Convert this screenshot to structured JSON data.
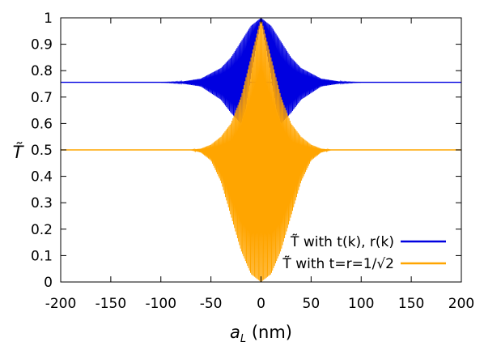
{
  "chart_data": {
    "type": "line",
    "ylabel": "T̃",
    "xlabel_symbol": "a",
    "xlabel_subscript": "L",
    "xlabel_unit": "(nm)",
    "xlim": [
      -200,
      200
    ],
    "ylim": [
      0,
      1
    ],
    "xticks": [
      -200,
      -150,
      -100,
      -50,
      0,
      50,
      100,
      150,
      200
    ],
    "xtick_labels": [
      "-200",
      "-150",
      "-100",
      "-50",
      "0",
      "50",
      "100",
      "150",
      "200"
    ],
    "yticks": [
      0,
      0.1,
      0.2,
      0.3,
      0.4,
      0.5,
      0.6,
      0.7,
      0.8,
      0.9,
      1
    ],
    "ytick_labels": [
      "0",
      "0.1",
      "0.2",
      "0.3",
      "0.4",
      "0.5",
      "0.6",
      "0.7",
      "0.8",
      "0.9",
      "1"
    ],
    "grid": false,
    "legend_position": "bottom-right",
    "series": [
      {
        "name": "T̃ with t(k), r(k)",
        "color": "#0000e0",
        "baseline": 0.756,
        "upper": [
          [
            -200,
            0.756
          ],
          [
            -100,
            0.756
          ],
          [
            -80,
            0.758
          ],
          [
            -60,
            0.77
          ],
          [
            -40,
            0.81
          ],
          [
            -30,
            0.85
          ],
          [
            -20,
            0.91
          ],
          [
            -10,
            0.97
          ],
          [
            0,
            1.0
          ],
          [
            10,
            0.97
          ],
          [
            20,
            0.91
          ],
          [
            30,
            0.85
          ],
          [
            40,
            0.81
          ],
          [
            60,
            0.77
          ],
          [
            80,
            0.758
          ],
          [
            100,
            0.756
          ],
          [
            200,
            0.756
          ]
        ],
        "lower": [
          [
            -200,
            0.756
          ],
          [
            -100,
            0.756
          ],
          [
            -80,
            0.752
          ],
          [
            -60,
            0.74
          ],
          [
            -40,
            0.69
          ],
          [
            -30,
            0.64
          ],
          [
            -20,
            0.6
          ],
          [
            -15,
            0.66
          ],
          [
            -10,
            0.78
          ],
          [
            0,
            0.99
          ],
          [
            10,
            0.78
          ],
          [
            15,
            0.66
          ],
          [
            20,
            0.6
          ],
          [
            30,
            0.64
          ],
          [
            40,
            0.69
          ],
          [
            60,
            0.74
          ],
          [
            80,
            0.752
          ],
          [
            100,
            0.756
          ],
          [
            200,
            0.756
          ]
        ]
      },
      {
        "name": "T̃ with t=r=1/√2",
        "color": "#ffa500",
        "baseline": 0.5,
        "upper": [
          [
            -200,
            0.5
          ],
          [
            -70,
            0.5
          ],
          [
            -60,
            0.505
          ],
          [
            -50,
            0.52
          ],
          [
            -40,
            0.55
          ],
          [
            -30,
            0.6
          ],
          [
            -20,
            0.7
          ],
          [
            -10,
            0.85
          ],
          [
            0,
            1.0
          ],
          [
            10,
            0.85
          ],
          [
            20,
            0.7
          ],
          [
            30,
            0.6
          ],
          [
            40,
            0.55
          ],
          [
            50,
            0.52
          ],
          [
            60,
            0.505
          ],
          [
            70,
            0.5
          ],
          [
            200,
            0.5
          ]
        ],
        "lower": [
          [
            -200,
            0.5
          ],
          [
            -70,
            0.5
          ],
          [
            -60,
            0.49
          ],
          [
            -50,
            0.46
          ],
          [
            -40,
            0.38
          ],
          [
            -30,
            0.25
          ],
          [
            -20,
            0.12
          ],
          [
            -10,
            0.03
          ],
          [
            0,
            0.0
          ],
          [
            10,
            0.03
          ],
          [
            20,
            0.12
          ],
          [
            30,
            0.25
          ],
          [
            40,
            0.38
          ],
          [
            50,
            0.46
          ],
          [
            60,
            0.49
          ],
          [
            70,
            0.5
          ],
          [
            200,
            0.5
          ]
        ]
      }
    ]
  }
}
